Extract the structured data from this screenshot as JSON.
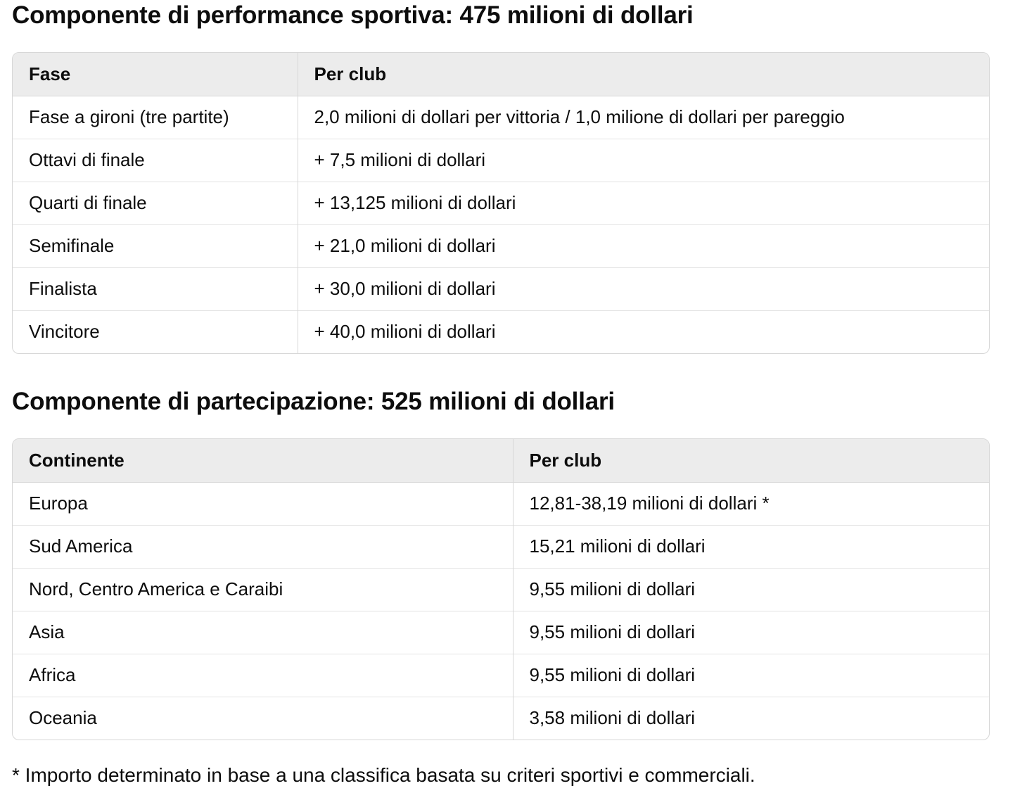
{
  "section_performance": {
    "title": "Componente di performance sportiva: 475 milioni di dollari",
    "headers": [
      "Fase",
      "Per club"
    ],
    "rows": [
      [
        "Fase a gironi (tre partite)",
        "2,0 milioni di dollari per vittoria / 1,0 milione di dollari per pareggio"
      ],
      [
        "Ottavi di finale",
        "+ 7,5 milioni di dollari"
      ],
      [
        "Quarti di finale",
        "+ 13,125 milioni di dollari"
      ],
      [
        "Semifinale",
        "+ 21,0 milioni di dollari"
      ],
      [
        "Finalista",
        "+ 30,0 milioni di dollari"
      ],
      [
        "Vincitore",
        "+ 40,0 milioni di dollari"
      ]
    ]
  },
  "section_participation": {
    "title": "Componente di partecipazione: 525 milioni di dollari",
    "headers": [
      "Continente",
      "Per club"
    ],
    "rows": [
      [
        "Europa",
        "12,81-38,19 milioni di dollari *"
      ],
      [
        "Sud America",
        "15,21 milioni di dollari"
      ],
      [
        "Nord, Centro America e Caraibi",
        "9,55 milioni di dollari"
      ],
      [
        "Asia",
        "9,55 milioni di dollari"
      ],
      [
        "Africa",
        "9,55 milioni di dollari"
      ],
      [
        "Oceania",
        "3,58 milioni di dollari"
      ]
    ]
  },
  "footnote": "* Importo determinato in base a una classifica basata su criteri sportivi e commerciali."
}
